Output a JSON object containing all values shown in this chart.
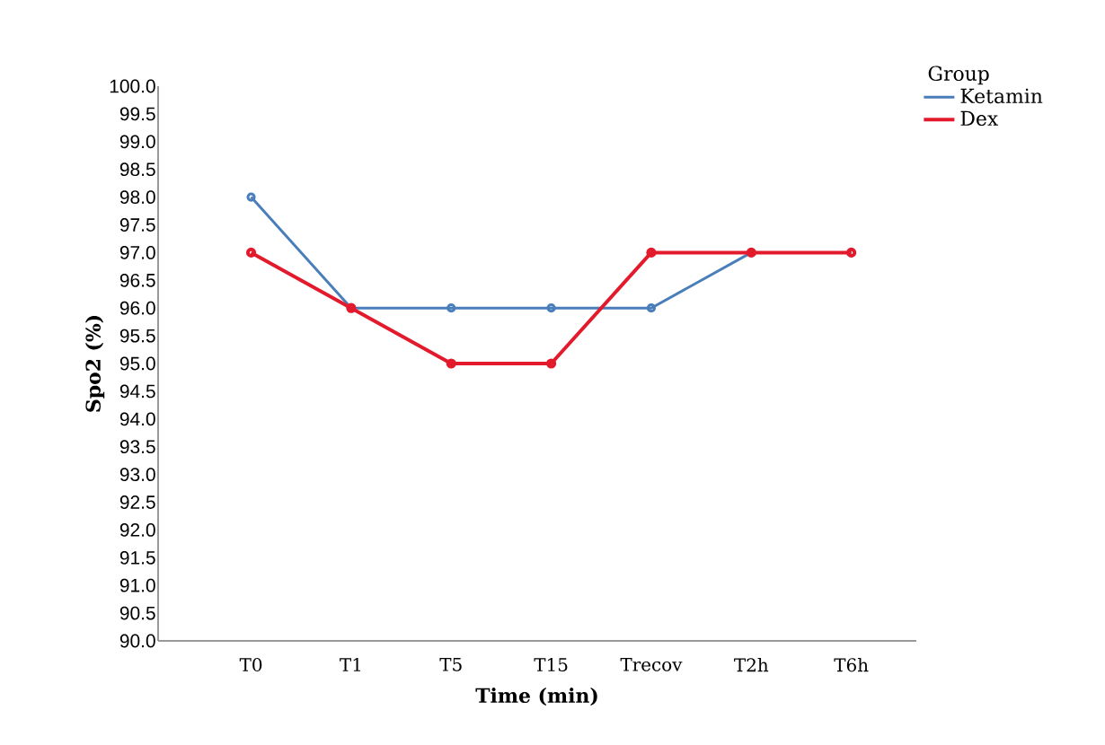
{
  "chart_data": {
    "type": "line",
    "xlabel": "Time (min)",
    "ylabel": "Spo2 (%)",
    "legend_title": "Group",
    "categories": [
      "T0",
      "T1",
      "T5",
      "T15",
      "Trecov",
      "T2h",
      "T6h"
    ],
    "series": [
      {
        "name": "Ketamin",
        "color": "#4a7ebb",
        "values": [
          98,
          96,
          96,
          96,
          96,
          97,
          97
        ]
      },
      {
        "name": "Dex",
        "color": "#e31a2c",
        "values": [
          97,
          96,
          95,
          95,
          97,
          97,
          97
        ]
      }
    ],
    "ylim": [
      90,
      100
    ],
    "yticks": [
      {
        "value": 90,
        "label": "90.0"
      },
      {
        "value": 90.5,
        "label": "90.5"
      },
      {
        "value": 91,
        "label": "91.0"
      },
      {
        "value": 91.5,
        "label": "91.5"
      },
      {
        "value": 92,
        "label": "92.0"
      },
      {
        "value": 92.5,
        "label": "92.5"
      },
      {
        "value": 93,
        "label": "93.0"
      },
      {
        "value": 93.5,
        "label": "93.5"
      },
      {
        "value": 94,
        "label": "94.0"
      },
      {
        "value": 94.5,
        "label": "94.5"
      },
      {
        "value": 95,
        "label": "95.0"
      },
      {
        "value": 95.5,
        "label": "95.5"
      },
      {
        "value": 96,
        "label": "96.0"
      },
      {
        "value": 96.5,
        "label": "96.5"
      },
      {
        "value": 97,
        "label": "97.0"
      },
      {
        "value": 97.5,
        "label": "97.5"
      },
      {
        "value": 98,
        "label": "98.0"
      },
      {
        "value": 98.5,
        "label": "98.5"
      },
      {
        "value": 99,
        "label": "99.0"
      },
      {
        "value": 99.5,
        "label": "99.5"
      },
      {
        "value": 100,
        "label": "100.0"
      }
    ],
    "legend": "top right",
    "marker": "circle",
    "line_style": "solid",
    "grid": false
  }
}
